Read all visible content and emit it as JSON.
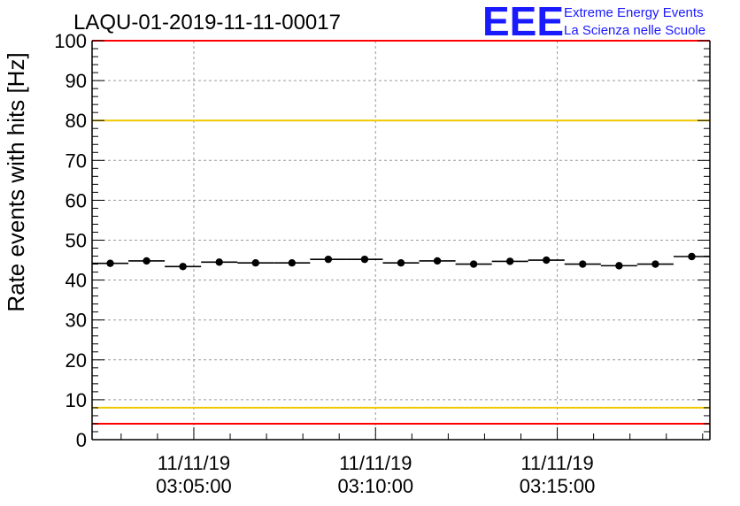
{
  "header": {
    "title": "LAQU-01-2019-11-11-00017"
  },
  "logo": {
    "mark": "EEE",
    "line1": "Extreme Energy Events",
    "line2": "La Scienza nelle Scuole",
    "color": "#1a1aff"
  },
  "chart_data": {
    "type": "scatter",
    "title": "LAQU-01-2019-11-11-00017",
    "xlabel": "",
    "ylabel": "Rate events with hits [Hz]",
    "ylim": [
      0,
      100
    ],
    "yticks": [
      0,
      10,
      20,
      30,
      40,
      50,
      60,
      70,
      80,
      90,
      100
    ],
    "grid": true,
    "x_unit": "minutes after 03:00:00",
    "xlim": [
      2.2,
      19.2
    ],
    "xticks": [
      {
        "value": 5,
        "date": "11/11/19",
        "time": "03:05:00"
      },
      {
        "value": 10,
        "date": "11/11/19",
        "time": "03:10:00"
      },
      {
        "value": 15,
        "date": "11/11/19",
        "time": "03:15:00"
      }
    ],
    "bin_width": 1.0,
    "series": [
      {
        "name": "rate",
        "x": [
          2.7,
          3.7,
          4.7,
          5.7,
          6.7,
          7.7,
          8.7,
          9.7,
          10.7,
          11.7,
          12.7,
          13.7,
          14.7,
          15.7,
          16.7,
          17.7,
          18.7
        ],
        "values": [
          44.2,
          44.8,
          43.4,
          44.5,
          44.3,
          44.3,
          45.2,
          45.2,
          44.3,
          44.8,
          44.0,
          44.7,
          45.0,
          44.0,
          43.6,
          44.0,
          45.9
        ],
        "color": "#000000"
      }
    ],
    "reference_lines": [
      {
        "name": "upper-threshold",
        "value": 80,
        "color": "#f0c800"
      },
      {
        "name": "lower-threshold",
        "value": 8,
        "color": "#f0c800"
      },
      {
        "name": "minimum-threshold",
        "value": 4,
        "color": "#ff0000"
      },
      {
        "name": "top-limit",
        "value": 100,
        "color": "#ff0000"
      }
    ]
  }
}
